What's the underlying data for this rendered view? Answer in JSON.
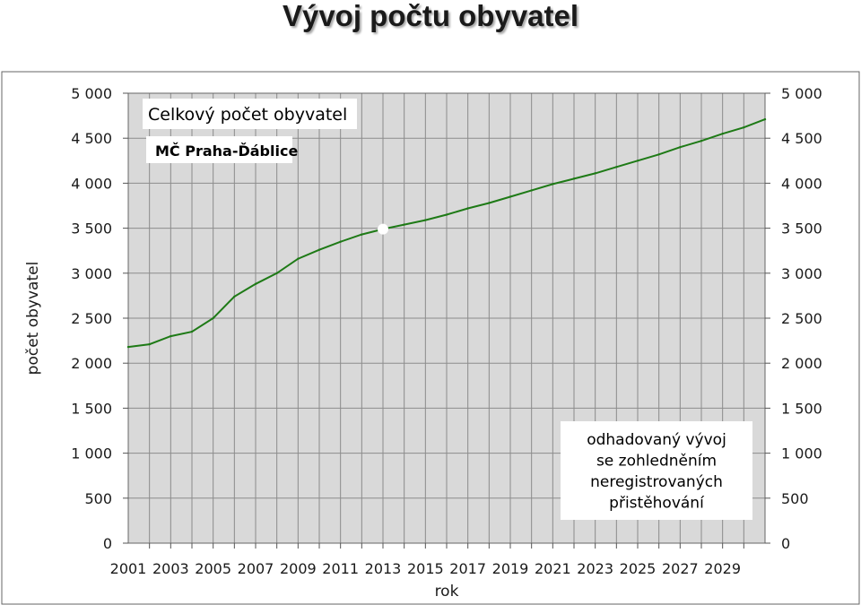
{
  "title": "Vývoj počtu obyvatel",
  "colors": {
    "line": "#1e7a16",
    "plot_bg": "#d9d9d9",
    "grid": "#8c8c8c"
  },
  "chart_data": {
    "type": "line",
    "xlabel": "rok",
    "ylabel": "počet obyvatel",
    "xlim": [
      2001,
      2031
    ],
    "ylim": [
      0,
      5000
    ],
    "x_tick_labels": [
      "2001",
      "2003",
      "2005",
      "2007",
      "2009",
      "2011",
      "2013",
      "2015",
      "2017",
      "2019",
      "2021",
      "2023",
      "2025",
      "2027",
      "2029"
    ],
    "y_tick_labels": [
      "0",
      "500",
      "1 000",
      "1 500",
      "2 000",
      "2 500",
      "3 000",
      "3 500",
      "4 000",
      "4 500",
      "5 000"
    ],
    "y_ticks": [
      0,
      500,
      1000,
      1500,
      2000,
      2500,
      3000,
      3500,
      4000,
      4500,
      5000
    ],
    "grid": true,
    "legend_title": "Celkový počet obyvatel",
    "legend_subtitle": "MČ Praha-Ďáblice",
    "annotation_lines": [
      "odhadovaný vývoj",
      "se zohledněním",
      "neregistrovaných",
      "přistěhování"
    ],
    "highlight_point": {
      "x": 2013,
      "y": 3490
    },
    "series": [
      {
        "x": [
          2001,
          2002,
          2003,
          2004,
          2005,
          2006,
          2007,
          2008,
          2009,
          2010,
          2011,
          2012,
          2013,
          2014,
          2015,
          2016,
          2017,
          2018,
          2019,
          2020,
          2021,
          2022,
          2023,
          2024,
          2025,
          2026,
          2027,
          2028,
          2029,
          2030,
          2031
        ],
        "y": [
          2180,
          2210,
          2300,
          2350,
          2500,
          2740,
          2880,
          3000,
          3160,
          3260,
          3350,
          3430,
          3490,
          3540,
          3590,
          3650,
          3720,
          3780,
          3850,
          3920,
          3990,
          4050,
          4110,
          4180,
          4250,
          4320,
          4400,
          4470,
          4550,
          4620,
          4710
        ]
      }
    ]
  }
}
